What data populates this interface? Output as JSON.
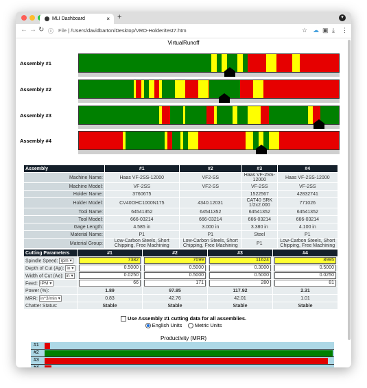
{
  "browser": {
    "tab_title": "MLI Dashboard",
    "tab_close": "×",
    "new_tab": "+",
    "info": "ⓘ",
    "file_label": "File",
    "url": "/Users/davidbarton/Desktop/VRO-Holder/test7.htm"
  },
  "virtual_runoff": {
    "title": "VirtualRunoff",
    "assemblies": [
      {
        "label": "Assembly #1",
        "marker": 0.58,
        "segments": [
          [
            0,
            0.51,
            "g"
          ],
          [
            0.51,
            0.53,
            "y"
          ],
          [
            0.53,
            0.55,
            "g"
          ],
          [
            0.55,
            0.57,
            "y"
          ],
          [
            0.57,
            0.61,
            "g"
          ],
          [
            0.61,
            0.63,
            "y"
          ],
          [
            0.63,
            0.65,
            "g"
          ],
          [
            0.65,
            0.72,
            "r"
          ],
          [
            0.72,
            0.76,
            "y"
          ],
          [
            0.76,
            0.82,
            "r"
          ],
          [
            0.82,
            0.85,
            "y"
          ],
          [
            0.85,
            1,
            "r"
          ]
        ]
      },
      {
        "label": "Assembly #2",
        "marker": 0.56,
        "segments": [
          [
            0,
            0.21,
            "g"
          ],
          [
            0.21,
            0.22,
            "y"
          ],
          [
            0.22,
            0.24,
            "r"
          ],
          [
            0.24,
            0.25,
            "y"
          ],
          [
            0.25,
            0.27,
            "g"
          ],
          [
            0.27,
            0.29,
            "y"
          ],
          [
            0.29,
            0.31,
            "r"
          ],
          [
            0.31,
            0.32,
            "y"
          ],
          [
            0.32,
            0.37,
            "g"
          ],
          [
            0.37,
            0.41,
            "y"
          ],
          [
            0.41,
            0.46,
            "r"
          ],
          [
            0.46,
            0.5,
            "y"
          ],
          [
            0.5,
            0.62,
            "g"
          ],
          [
            0.62,
            0.67,
            "r"
          ],
          [
            0.67,
            0.71,
            "y"
          ],
          [
            0.71,
            1,
            "r"
          ]
        ]
      },
      {
        "label": "Assembly #3",
        "marker": 0.92,
        "segments": [
          [
            0,
            0.31,
            "g"
          ],
          [
            0.31,
            0.32,
            "y"
          ],
          [
            0.32,
            0.35,
            "r"
          ],
          [
            0.35,
            0.4,
            "g"
          ],
          [
            0.4,
            0.41,
            "y"
          ],
          [
            0.41,
            0.49,
            "g"
          ],
          [
            0.49,
            0.52,
            "r"
          ],
          [
            0.52,
            0.53,
            "y"
          ],
          [
            0.53,
            0.59,
            "g"
          ],
          [
            0.59,
            0.61,
            "y"
          ],
          [
            0.61,
            0.65,
            "g"
          ],
          [
            0.65,
            0.7,
            "y"
          ],
          [
            0.7,
            0.73,
            "r"
          ],
          [
            0.73,
            0.88,
            "g"
          ],
          [
            0.88,
            0.9,
            "y"
          ],
          [
            0.9,
            0.93,
            "r"
          ],
          [
            0.93,
            1,
            "g"
          ]
        ]
      },
      {
        "label": "Assembly #4",
        "marker": 0.7,
        "segments": [
          [
            0,
            0.17,
            "r"
          ],
          [
            0.17,
            0.18,
            "y"
          ],
          [
            0.18,
            0.33,
            "g"
          ],
          [
            0.33,
            0.34,
            "y"
          ],
          [
            0.34,
            0.36,
            "r"
          ],
          [
            0.36,
            0.39,
            "g"
          ],
          [
            0.39,
            0.4,
            "y"
          ],
          [
            0.4,
            0.42,
            "g"
          ],
          [
            0.42,
            0.46,
            "y"
          ],
          [
            0.46,
            0.64,
            "r"
          ],
          [
            0.64,
            0.67,
            "y"
          ],
          [
            0.67,
            0.69,
            "g"
          ],
          [
            0.69,
            0.71,
            "y"
          ],
          [
            0.71,
            0.73,
            "g"
          ],
          [
            0.73,
            0.77,
            "y"
          ],
          [
            0.77,
            1,
            "r"
          ]
        ]
      }
    ]
  },
  "spec_table": {
    "headers": [
      "Assembly",
      "#1",
      "#2",
      "#3",
      "#4"
    ],
    "rows": [
      {
        "label": "Machine Name:",
        "values": [
          "Haas VF-2SS-12000",
          "VF2-SS",
          "Haas VF-2SS-12000",
          "Haas VF-2SS-12000"
        ]
      },
      {
        "label": "Machine Model:",
        "values": [
          "VF-2SS",
          "VF2-SS",
          "VF-2SS",
          "VF-2SS"
        ]
      },
      {
        "label": "Holder Name:",
        "values": [
          "3760675",
          "",
          "1522567",
          "42832741"
        ]
      },
      {
        "label": "Holder Model:",
        "values": [
          "CV40OHC1000N175",
          "4340.12031",
          "CAT40 SRK 1/2x2.000",
          "771026"
        ]
      },
      {
        "label": "Tool Name:",
        "values": [
          "64541352",
          "64541352",
          "64541352",
          "64541352"
        ]
      },
      {
        "label": "Tool Model:",
        "values": [
          "666-03214",
          "666-03214",
          "666-03214",
          "666-03214"
        ]
      },
      {
        "label": "Gage Length:",
        "values": [
          "4.585 in",
          "3.000 in",
          "3.380 in",
          "4.100 in"
        ]
      },
      {
        "label": "Material Name:",
        "values": [
          "P1",
          "P1",
          "Steel",
          "P1"
        ]
      },
      {
        "label": "Material Group:",
        "values": [
          "Low-Carbon Steels, Short Chipping, Free Machining",
          "Low-Carbon Steels, Short Chipping, Free Machining",
          "P1",
          "Low-Carbon Steels, Short Chipping, Free Machining"
        ]
      }
    ]
  },
  "cutting": {
    "headers": [
      "Cutting Parameters",
      "#1",
      "#2",
      "#3",
      "#4"
    ],
    "spindle": {
      "label": "Spindle Speed:",
      "unit": "rpm",
      "values": [
        "7382",
        "7099",
        "11624",
        "8995"
      ]
    },
    "doc": {
      "label": "Depth of Cut (Ap):",
      "unit": "in",
      "values": [
        "0.5000",
        "0.5000",
        "0.3000",
        "0.5000"
      ]
    },
    "woc": {
      "label": "Width of Cut (Ae):",
      "unit": "in",
      "values": [
        "0.0250",
        "0.5000",
        "0.5000",
        "0.0250"
      ]
    },
    "feed": {
      "label": "Feed:",
      "unit": "IPM",
      "values": [
        "66",
        "171",
        "280",
        "81"
      ]
    },
    "power": {
      "label": "Power (%):",
      "values": [
        "1.89",
        "97.85",
        "117.92",
        "2.31"
      ]
    },
    "mrr": {
      "label": "MRR:",
      "unit": "in^3/min",
      "values": [
        "0.83",
        "42.76",
        "42.01",
        "1.01"
      ]
    },
    "chatter": {
      "label": "Chatter Status:",
      "values": [
        "Stable",
        "Stable",
        "Stable",
        "Stable"
      ]
    }
  },
  "options": {
    "use_assembly1": "Use Assembly #1 cutting data for all assemblies.",
    "english": "English Units",
    "metric": "Metric Units"
  },
  "productivity": {
    "title": "Productivity (MRR)",
    "rows": [
      {
        "label": "#1",
        "value": 0.83
      },
      {
        "label": "#2",
        "value": 42.76
      },
      {
        "label": "#3",
        "value": 42.01
      },
      {
        "label": "#4",
        "value": 1.01
      }
    ],
    "max": 42.76,
    "colors": {
      "low": "#e00000",
      "best": "#008000"
    }
  },
  "colors": {
    "green": "#008000",
    "yellow": "#ffff00",
    "red": "#e60000"
  }
}
